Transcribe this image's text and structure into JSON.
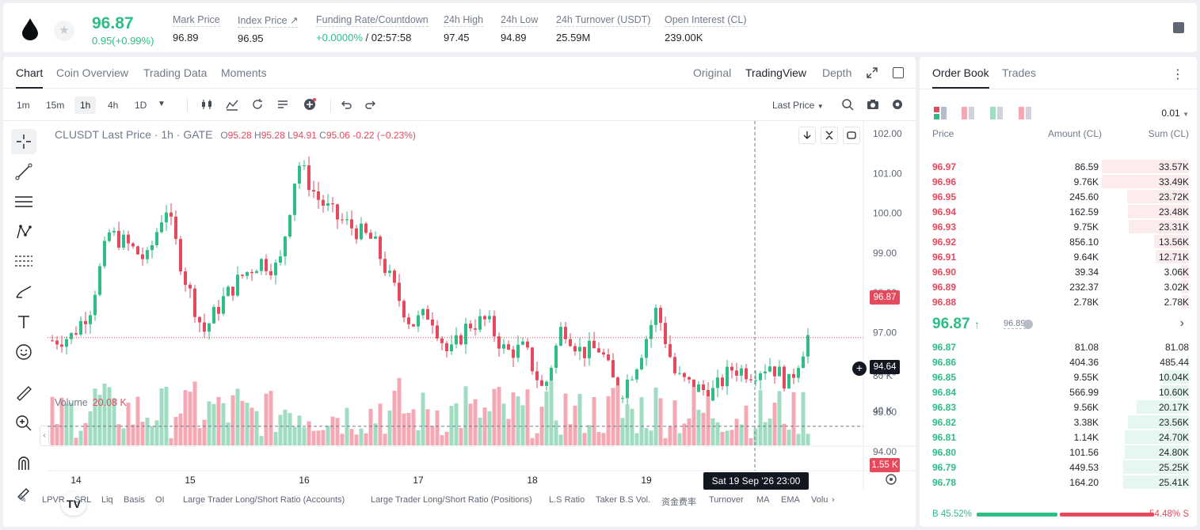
{
  "ticker": {
    "last_price": "96.87",
    "change": "0.95(+0.99%)",
    "stats": [
      {
        "label": "Mark Price",
        "value": "96.89"
      },
      {
        "label": "Index Price ↗",
        "value": "96.95"
      },
      {
        "label": "Funding Rate/Countdown",
        "value_green": "+0.0000%",
        "value": " / 02:57:58"
      },
      {
        "label": "24h High",
        "value": "97.45"
      },
      {
        "label": "24h Low",
        "value": "94.89"
      },
      {
        "label": "24h Turnover (USDT)",
        "value": "25.59M"
      },
      {
        "label": "Open Interest (CL)",
        "value": "239.00K"
      }
    ]
  },
  "tabs": [
    "Chart",
    "Coin Overview",
    "Trading Data",
    "Moments"
  ],
  "views": [
    "Original",
    "TradingView",
    "Depth"
  ],
  "intervals": [
    "1m",
    "15m",
    "1h",
    "4h",
    "1D"
  ],
  "price_source": "Last Price",
  "legend": {
    "symbol": "CLUSDT Last Price · 1h · GATE",
    "o_label": "O",
    "o": "95.28",
    "h_label": "H",
    "h": "95.28",
    "l_label": "L",
    "l": "94.91",
    "c_label": "C",
    "c": "95.06",
    "change": "-0.22 (−0.23%)"
  },
  "volume": {
    "label": "Volume",
    "value": "20.08 K"
  },
  "price_axis": [
    "102.00",
    "101.00",
    "100.00",
    "99.00",
    "98.00",
    "97.00",
    "96.00",
    "95.00",
    "94.00"
  ],
  "volume_axis": [
    "80 K",
    "40 K"
  ],
  "date_axis": [
    "14",
    "15",
    "16",
    "17",
    "18",
    "19"
  ],
  "price_tags": {
    "current": "96.87",
    "crosshair": "94.64",
    "volume": "1.55 K"
  },
  "crosshair_date": "Sat 19 Sep '26   23:00",
  "indicators": [
    "LPVR",
    "SRL",
    "Liq",
    "Basis",
    "OI",
    "Large Trader Long/Short Ratio (Accounts)",
    "Large Trader Long/Short Ratio (Positions)",
    "L.S Ratio",
    "Taker B.S Vol.",
    "资金费率",
    "Turnover",
    "MA",
    "EMA",
    "Volu"
  ],
  "colors": {
    "up": "#2ebd85",
    "down": "#e5495c",
    "up_vol": "#9fdcc2",
    "down_vol": "#f3a8b3"
  },
  "chart_data": {
    "type": "candlestick",
    "timeframe": "1h",
    "ylim": [
      94.0,
      102.0
    ],
    "close_path": [
      96.8,
      96.9,
      97.6,
      99.5,
      99.2,
      98.8,
      100.2,
      98.4,
      97.0,
      97.8,
      98.4,
      98.8,
      98.6,
      101.3,
      100.4,
      99.9,
      99.6,
      99.3,
      98.2,
      97.2,
      97.5,
      96.4,
      97.2,
      97.3,
      96.5,
      96.6,
      95.5,
      97.2,
      96.5,
      96.6,
      95.4,
      96.3,
      97.6,
      95.9,
      95.6,
      95.5,
      96.1,
      96.0,
      96.2,
      95.7,
      96.9
    ],
    "volume_range": [
      0,
      80000
    ]
  },
  "book": {
    "tabs": [
      "Order Book",
      "Trades"
    ],
    "precision": "0.01",
    "headers": [
      "Price",
      "Amount (CL)",
      "Sum (CL)"
    ],
    "asks": [
      {
        "price": "96.97",
        "amount": "86.59",
        "sum": "33.57K"
      },
      {
        "price": "96.96",
        "amount": "9.76K",
        "sum": "33.49K"
      },
      {
        "price": "96.95",
        "amount": "245.60",
        "sum": "23.72K"
      },
      {
        "price": "96.94",
        "amount": "162.59",
        "sum": "23.48K"
      },
      {
        "price": "96.93",
        "amount": "9.75K",
        "sum": "23.31K"
      },
      {
        "price": "96.92",
        "amount": "856.10",
        "sum": "13.56K"
      },
      {
        "price": "96.91",
        "amount": "9.64K",
        "sum": "12.71K"
      },
      {
        "price": "96.90",
        "amount": "39.34",
        "sum": "3.06K"
      },
      {
        "price": "96.89",
        "amount": "232.37",
        "sum": "3.02K"
      },
      {
        "price": "96.88",
        "amount": "2.78K",
        "sum": "2.78K"
      }
    ],
    "mid": {
      "price": "96.87",
      "arrow": "↑",
      "mark": "96.89"
    },
    "bids": [
      {
        "price": "96.87",
        "amount": "81.08",
        "sum": "81.08"
      },
      {
        "price": "96.86",
        "amount": "404.36",
        "sum": "485.44"
      },
      {
        "price": "96.85",
        "amount": "9.55K",
        "sum": "10.04K"
      },
      {
        "price": "96.84",
        "amount": "566.99",
        "sum": "10.60K"
      },
      {
        "price": "96.83",
        "amount": "9.56K",
        "sum": "20.17K"
      },
      {
        "price": "96.82",
        "amount": "3.38K",
        "sum": "23.56K"
      },
      {
        "price": "96.81",
        "amount": "1.14K",
        "sum": "24.70K"
      },
      {
        "price": "96.80",
        "amount": "101.56",
        "sum": "24.80K"
      },
      {
        "price": "96.79",
        "amount": "449.53",
        "sum": "25.25K"
      },
      {
        "price": "96.78",
        "amount": "164.20",
        "sum": "25.41K"
      }
    ],
    "buy_ratio": "45.52%",
    "sell_ratio": "54.48%",
    "buy_label": "B",
    "sell_label": "S"
  }
}
